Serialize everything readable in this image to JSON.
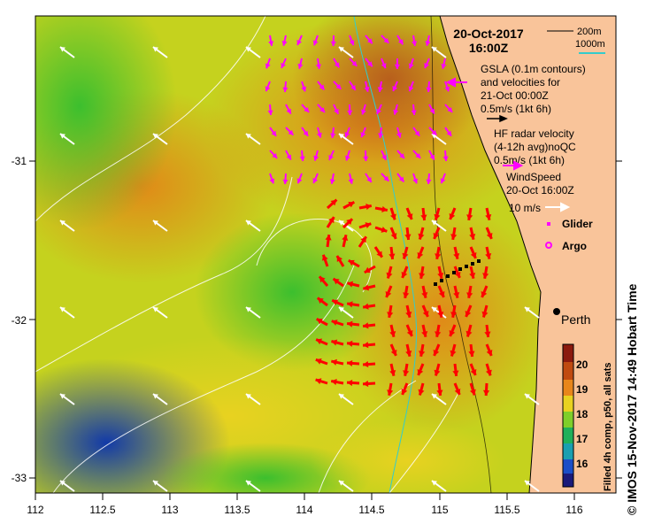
{
  "map": {
    "date": "20-Oct-2017",
    "time": "16:00Z",
    "city": "Perth",
    "credit": "© IMOS 15-Nov-2017 14:49 Hobart Time",
    "x_ticks": [
      "112",
      "112.5",
      "113",
      "113.5",
      "114",
      "114.5",
      "115",
      "115.5",
      "116"
    ],
    "y_ticks": [
      "-31",
      "-32",
      "-33"
    ]
  },
  "legend": {
    "depth_200": "200m",
    "depth_1000": "1000m",
    "gsla_line1": "GSLA (0.1m contours)",
    "gsla_line2": "and velocities for",
    "gsla_line3": "21-Oct 00:00Z",
    "gsla_scale": "0.5m/s (1kt 6h)",
    "hf_line1": "HF radar velocity",
    "hf_line2": "(4-12h avg)noQC",
    "hf_scale": "0.5m/s (1kt 6h)",
    "wind_line1": "WindSpeed",
    "wind_line2": "20-Oct 16:00Z",
    "wind_scale": "10 m/s",
    "glider": "Glider",
    "argo": "Argo"
  },
  "colorbar": {
    "title": "Filled 4h comp, p50, all sats",
    "ticks": [
      "20",
      "19",
      "18",
      "17",
      "16"
    ]
  },
  "colors": {
    "land": "#f9c49a",
    "gsla_arrow": "#ff00ff",
    "hf_arrow": "#ff0000",
    "wind_arrow": "#ffffff",
    "isobath_200": "#000000",
    "isobath_1000": "#33cccc"
  }
}
